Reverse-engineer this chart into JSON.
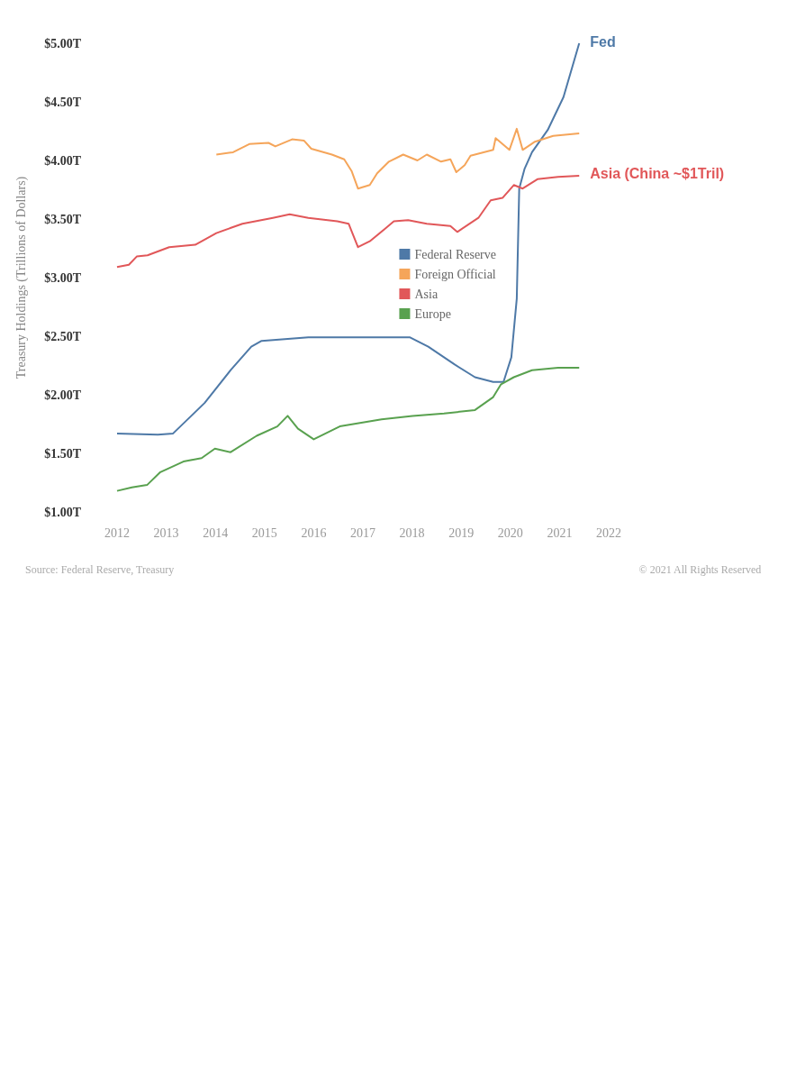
{
  "chart_data": {
    "type": "line",
    "ylabel": "Treasury Holdings (Trillions of Dollars)",
    "xlim": [
      2012,
      2022
    ],
    "xticks": [
      2012,
      2013,
      2014,
      2015,
      2016,
      2017,
      2018,
      2019,
      2020,
      2021,
      2022
    ],
    "ylim": [
      1,
      5
    ],
    "yticks": [
      {
        "value": 1,
        "label": "$1.00T"
      },
      {
        "value": 1.5,
        "label": "$1.50T"
      },
      {
        "value": 2,
        "label": "$2.00T"
      },
      {
        "value": 2.5,
        "label": "$2.50T"
      },
      {
        "value": 3,
        "label": "$3.00T"
      },
      {
        "value": 3.5,
        "label": "$3.50T"
      },
      {
        "value": 4,
        "label": "$4.00T"
      },
      {
        "value": 4.5,
        "label": "$4.50T"
      },
      {
        "value": 5,
        "label": "$5.00T"
      }
    ],
    "grid": false,
    "legend": "right",
    "series": [
      {
        "name": "Federal Reserve",
        "color": "#4e79a7",
        "x": [
          2012.0,
          2012.83,
          2013.14,
          2013.78,
          2014.31,
          2014.73,
          2014.94,
          2015.89,
          2016.95,
          2017.96,
          2018.33,
          2018.86,
          2019.28,
          2019.65,
          2019.86,
          2020.02,
          2020.13,
          2020.18,
          2020.29,
          2020.44,
          2020.76,
          2021.08,
          2021.4
        ],
        "values": [
          1.67,
          1.66,
          1.67,
          1.93,
          2.21,
          2.41,
          2.46,
          2.49,
          2.49,
          2.49,
          2.41,
          2.26,
          2.15,
          2.11,
          2.11,
          2.32,
          2.82,
          3.76,
          3.93,
          4.07,
          4.26,
          4.54,
          5.0
        ]
      },
      {
        "name": "Foreign Official",
        "color": "#f5a55a",
        "x": [
          2014.02,
          2014.36,
          2014.69,
          2015.08,
          2015.22,
          2015.56,
          2015.8,
          2015.95,
          2016.37,
          2016.62,
          2016.77,
          2016.9,
          2017.14,
          2017.29,
          2017.53,
          2017.82,
          2018.11,
          2018.3,
          2018.59,
          2018.78,
          2018.9,
          2019.07,
          2019.19,
          2019.65,
          2019.7,
          2019.98,
          2020.13,
          2020.25,
          2020.5,
          2020.87,
          2021.4
        ],
        "values": [
          4.05,
          4.07,
          4.14,
          4.15,
          4.12,
          4.18,
          4.17,
          4.1,
          4.05,
          4.01,
          3.91,
          3.76,
          3.79,
          3.89,
          3.99,
          4.05,
          4.0,
          4.05,
          3.99,
          4.01,
          3.9,
          3.96,
          4.04,
          4.09,
          4.19,
          4.09,
          4.27,
          4.09,
          4.16,
          4.21,
          4.23
        ]
      },
      {
        "name": "Asia",
        "color": "#e15759",
        "x": [
          2012.0,
          2012.24,
          2012.4,
          2012.62,
          2013.06,
          2013.59,
          2014.02,
          2014.55,
          2015.17,
          2015.51,
          2015.89,
          2016.48,
          2016.71,
          2016.9,
          2017.14,
          2017.43,
          2017.63,
          2017.92,
          2018.3,
          2018.78,
          2018.92,
          2019.35,
          2019.6,
          2019.84,
          2020.07,
          2020.25,
          2020.55,
          2020.97,
          2021.4
        ],
        "values": [
          3.09,
          3.11,
          3.18,
          3.19,
          3.26,
          3.28,
          3.38,
          3.46,
          3.51,
          3.54,
          3.51,
          3.48,
          3.46,
          3.26,
          3.31,
          3.41,
          3.48,
          3.49,
          3.46,
          3.44,
          3.39,
          3.51,
          3.66,
          3.68,
          3.79,
          3.76,
          3.84,
          3.86,
          3.87
        ]
      },
      {
        "name": "Europe",
        "color": "#59a14f",
        "x": [
          2012.0,
          2012.3,
          2012.61,
          2012.88,
          2013.35,
          2013.72,
          2013.99,
          2014.31,
          2014.84,
          2015.26,
          2015.47,
          2015.68,
          2016.0,
          2016.53,
          2017.38,
          2018.01,
          2018.65,
          2019.28,
          2019.65,
          2019.81,
          2020.07,
          2020.44,
          2020.97,
          2021.4
        ],
        "values": [
          1.18,
          1.21,
          1.23,
          1.34,
          1.43,
          1.46,
          1.54,
          1.51,
          1.65,
          1.73,
          1.82,
          1.71,
          1.62,
          1.73,
          1.79,
          1.82,
          1.84,
          1.87,
          1.98,
          2.09,
          2.15,
          2.21,
          2.23,
          2.23
        ]
      }
    ],
    "annotations": [
      {
        "text": "Fed",
        "x": 2021.4,
        "y": 5.0
      },
      {
        "text": "Asia (China ~$1Tril)",
        "x": 2021.4,
        "y": 3.87
      },
      "Source: Federal Reserve, Treasury",
      "© 2021 All Rights Reserved"
    ]
  }
}
